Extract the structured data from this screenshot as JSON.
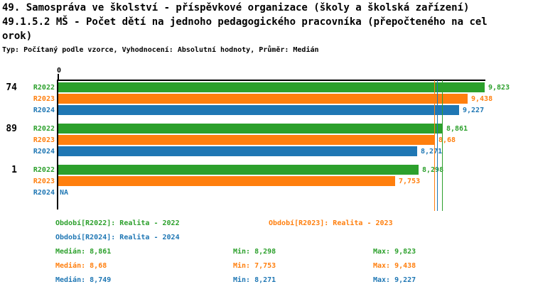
{
  "header": {
    "title_line1": "49. Samospráva ve školství - příspěvkové organizace (školy a školská zařízení)",
    "title_line2": "49.1.5.2 MŠ - Počet dětí na jednoho pedagogického pracovníka (přepočteného na cel",
    "title_line3": "orok)",
    "meta": "Typ: Počítaný podle vzorce, Vyhodnocení: Absolutní hodnoty, Průměr: Medián"
  },
  "chart_data": {
    "type": "bar",
    "orientation": "horizontal",
    "x_axis": {
      "min": 0,
      "max": 9.823,
      "zero_tick_label": "0",
      "grid": false
    },
    "categories": [
      "74",
      "89",
      "1"
    ],
    "na_label": "NA",
    "legend_position": "bottom",
    "series": [
      {
        "name": "R2022",
        "legend": "Období[R2022]: Realita - 2022",
        "color": "#2ca02c",
        "values": [
          9.823,
          8.861,
          8.298
        ],
        "value_labels": [
          "9,823",
          "8,861",
          "8,298"
        ],
        "median": 8.861,
        "stats": {
          "median": "Medián: 8,861",
          "min": "Min: 8,298",
          "max": "Max: 9,823"
        }
      },
      {
        "name": "R2023",
        "legend": "Období[R2023]: Realita - 2023",
        "color": "#ff7f0e",
        "values": [
          9.438,
          8.68,
          7.753
        ],
        "value_labels": [
          "9,438",
          "8,68",
          "7,753"
        ],
        "median": 8.68,
        "stats": {
          "median": "Medián: 8,68",
          "min": "Min: 7,753",
          "max": "Max: 9,438"
        }
      },
      {
        "name": "R2024",
        "legend": "Období[R2024]: Realita - 2024",
        "color": "#1f77b4",
        "values": [
          9.227,
          8.271,
          null
        ],
        "value_labels": [
          "9,227",
          "8,271",
          "NA"
        ],
        "median": 8.749,
        "stats": {
          "median": "Medián: 8,749",
          "min": "Min: 8,271",
          "max": "Max: 9,227"
        }
      }
    ]
  },
  "colors": {
    "text": "#000000",
    "background": "#ffffff",
    "axis": "#000000"
  }
}
